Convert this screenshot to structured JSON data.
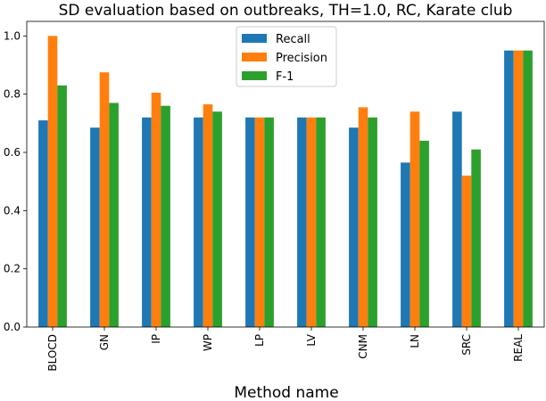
{
  "chart_data": {
    "type": "bar",
    "title": "SD evaluation based on outbreaks, TH=1.0, RC, Karate club",
    "xlabel": "Method name",
    "ylabel": "",
    "ylim": [
      0,
      1.05
    ],
    "yticks": [
      0.0,
      0.2,
      0.4,
      0.6,
      0.8,
      1.0
    ],
    "ytick_labels": [
      "0.0",
      "0.2",
      "0.4",
      "0.6",
      "0.8",
      "1.0"
    ],
    "categories": [
      "BLOCD",
      "GN",
      "IP",
      "WP",
      "LP",
      "LV",
      "CNM",
      "LN",
      "SRC",
      "REAL"
    ],
    "series": [
      {
        "name": "Recall",
        "color": "#1f77b4",
        "values": [
          0.71,
          0.685,
          0.72,
          0.72,
          0.72,
          0.72,
          0.685,
          0.565,
          0.74,
          0.95
        ]
      },
      {
        "name": "Precision",
        "color": "#ff7f0e",
        "values": [
          1.0,
          0.875,
          0.805,
          0.765,
          0.72,
          0.72,
          0.755,
          0.74,
          0.52,
          0.95
        ]
      },
      {
        "name": "F-1",
        "color": "#2ca02c",
        "values": [
          0.83,
          0.77,
          0.76,
          0.74,
          0.72,
          0.72,
          0.72,
          0.64,
          0.61,
          0.95
        ]
      }
    ],
    "grid": false,
    "legend_position": "top-center"
  }
}
